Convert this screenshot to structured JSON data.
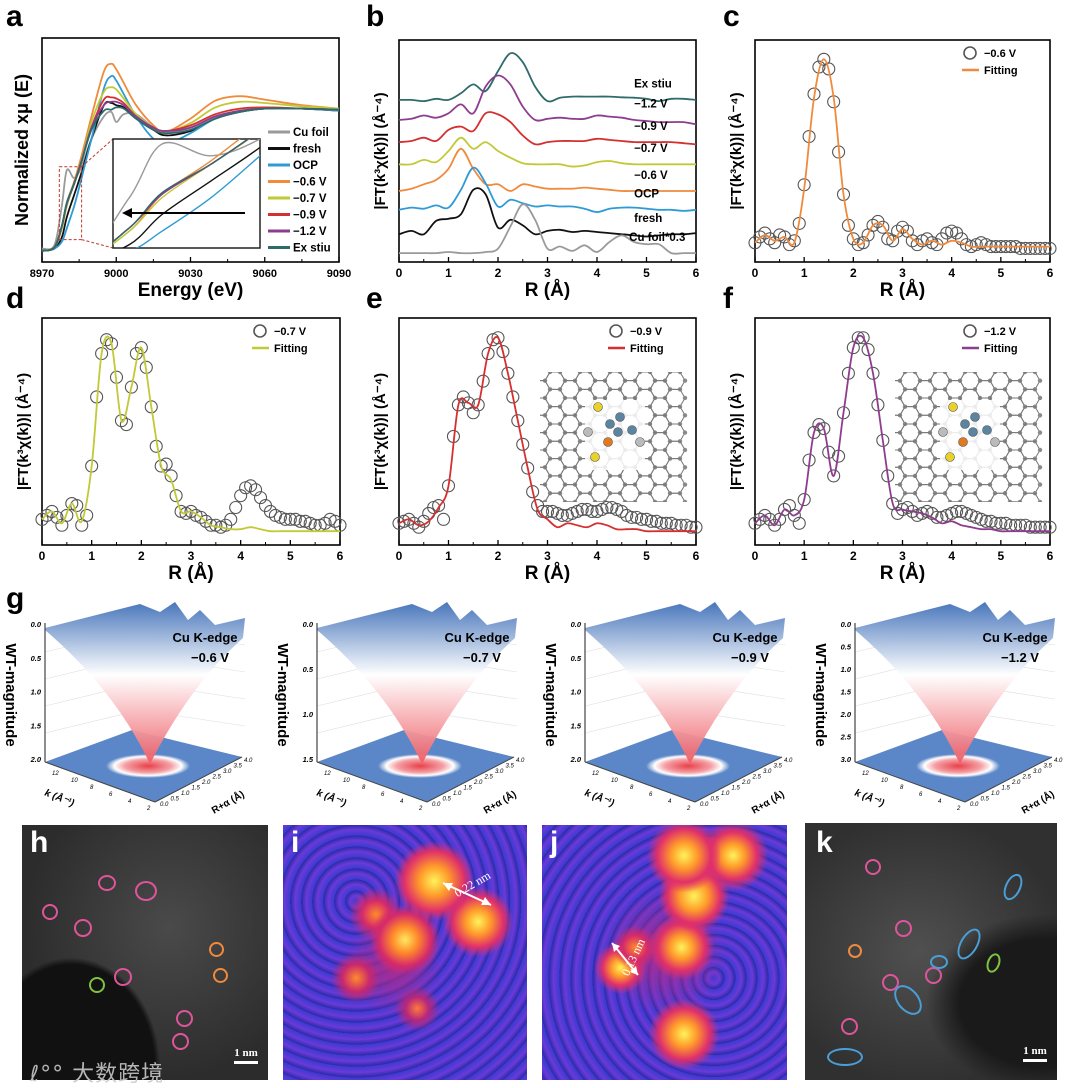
{
  "panel_labels": {
    "a": "a",
    "b": "b",
    "c": "c",
    "d": "d",
    "e": "e",
    "f": "f",
    "g": "g",
    "h": "h",
    "i": "i",
    "j": "j",
    "k": "k"
  },
  "colors": {
    "cu_foil": "#9a9a9a",
    "fresh": "#111111",
    "ocp": "#2f9bd6",
    "m06": "#f08a3c",
    "m07": "#c2c936",
    "m09": "#d62f2f",
    "m12": "#8e3d8e",
    "ex": "#2e6b6b"
  },
  "chart_data": [
    {
      "id": "a",
      "type": "line",
      "xlabel": "Energy (eV)",
      "ylabel": "Normalized xμ (E)",
      "xlim": [
        8970,
        9090
      ],
      "ylim": [
        -0.1,
        1.9
      ],
      "xticks": [
        8970,
        9000,
        9030,
        9060,
        9090
      ],
      "inset": {
        "xlim": [
          8977,
          8986
        ],
        "ylim": [
          0.1,
          0.75
        ]
      },
      "x": [
        8970,
        8975,
        8978,
        8980,
        8983,
        8986,
        8990,
        8995,
        8998,
        9000,
        9003,
        9008,
        9015,
        9020,
        9030,
        9040,
        9050,
        9060,
        9075,
        9090
      ],
      "series": [
        {
          "name": "Cu foil",
          "color_key": "cu_foil",
          "values": [
            0.02,
            0.05,
            0.4,
            0.72,
            0.65,
            0.75,
            1.0,
            1.2,
            1.24,
            1.15,
            1.22,
            1.22,
            1.1,
            1.05,
            1.1,
            1.2,
            1.25,
            1.28,
            1.27,
            1.26
          ]
        },
        {
          "name": "fresh",
          "color_key": "fresh",
          "values": [
            0,
            0.02,
            0.12,
            0.3,
            0.5,
            0.7,
            1.0,
            1.3,
            1.32,
            1.3,
            1.28,
            1.18,
            1.08,
            1.03,
            1.07,
            1.18,
            1.24,
            1.27,
            1.27,
            1.25
          ]
        },
        {
          "name": "OCP",
          "color_key": "ocp",
          "values": [
            0,
            0.02,
            0.08,
            0.2,
            0.4,
            0.65,
            1.0,
            1.45,
            1.56,
            1.52,
            1.4,
            1.2,
            1.0,
            0.95,
            1.05,
            1.18,
            1.24,
            1.27,
            1.27,
            1.25
          ]
        },
        {
          "name": "−0.6 V",
          "color_key": "m06",
          "values": [
            0,
            0.03,
            0.2,
            0.42,
            0.62,
            0.85,
            1.2,
            1.6,
            1.67,
            1.62,
            1.5,
            1.3,
            1.12,
            1.06,
            1.18,
            1.34,
            1.38,
            1.35,
            1.3,
            1.27
          ]
        },
        {
          "name": "−0.7 V",
          "color_key": "m07",
          "values": [
            0,
            0.03,
            0.2,
            0.4,
            0.6,
            0.8,
            1.15,
            1.42,
            1.46,
            1.44,
            1.36,
            1.22,
            1.1,
            1.06,
            1.14,
            1.28,
            1.33,
            1.32,
            1.29,
            1.27
          ]
        },
        {
          "name": "−0.9 V",
          "color_key": "m09",
          "values": [
            0,
            0.03,
            0.22,
            0.42,
            0.6,
            0.8,
            1.1,
            1.35,
            1.37,
            1.36,
            1.32,
            1.2,
            1.1,
            1.07,
            1.12,
            1.22,
            1.27,
            1.28,
            1.27,
            1.26
          ]
        },
        {
          "name": "−1.2 V",
          "color_key": "m12",
          "values": [
            0,
            0.03,
            0.22,
            0.42,
            0.6,
            0.8,
            1.1,
            1.3,
            1.33,
            1.33,
            1.3,
            1.2,
            1.1,
            1.07,
            1.1,
            1.2,
            1.25,
            1.27,
            1.27,
            1.26
          ]
        },
        {
          "name": "Ex stiu",
          "color_key": "ex",
          "values": [
            0,
            0.03,
            0.22,
            0.43,
            0.6,
            0.8,
            1.08,
            1.25,
            1.26,
            1.28,
            1.27,
            1.18,
            1.08,
            1.05,
            1.08,
            1.18,
            1.24,
            1.27,
            1.27,
            1.26
          ]
        }
      ]
    },
    {
      "id": "b",
      "type": "line",
      "xlabel": "R (Å)",
      "ylabel": "|FT(k³χ(k))| (Å⁻⁴)",
      "xlim": [
        0,
        6
      ],
      "ylim": [
        0,
        10
      ],
      "xticks": [
        0,
        1,
        2,
        3,
        4,
        5,
        6
      ],
      "x_start": 0,
      "x_step": 0.25,
      "series": [
        {
          "name": "Ex stiu",
          "color_key": "ex",
          "offset": 7.3,
          "values": [
            0,
            0,
            -0.05,
            0.05,
            0,
            0.3,
            0.7,
            0.4,
            1.3,
            2.1,
            1.7,
            0.6,
            -0.05,
            0.1,
            0.15,
            0.15,
            0.15,
            0.15,
            0.12,
            0.1,
            0.05,
            -0.05,
            0.05,
            0.05,
            0
          ]
        },
        {
          "name": "−1.2 V",
          "color_key": "m12",
          "offset": 6.4,
          "values": [
            0,
            0.05,
            0.2,
            0.1,
            0.3,
            0.7,
            0.3,
            1.5,
            2.0,
            1.6,
            0.6,
            0,
            0.05,
            0.1,
            0.05,
            0.05,
            0.2,
            0.15,
            0.1,
            0,
            -0.05,
            -0.1,
            -0.1,
            -0.1,
            -0.2
          ]
        },
        {
          "name": "−0.9 V",
          "color_key": "m09",
          "offset": 5.4,
          "values": [
            0,
            0.05,
            0.2,
            0.05,
            0.55,
            0.7,
            0.5,
            1.3,
            1.25,
            0.9,
            0.3,
            -0.1,
            0,
            0.05,
            0.05,
            0.05,
            0.15,
            0.1,
            0.05,
            0,
            0,
            0,
            0,
            -0.05,
            -0.1
          ]
        },
        {
          "name": "−0.7 V",
          "color_key": "m07",
          "offset": 4.4,
          "values": [
            0,
            0,
            0.2,
            0.1,
            0.6,
            1.2,
            0.7,
            1.0,
            0.6,
            0.3,
            0.05,
            0,
            0,
            0,
            -0.1,
            -0.05,
            0.1,
            0.15,
            0.05,
            0,
            0,
            0,
            0,
            0,
            0
          ]
        },
        {
          "name": "−0.6 V",
          "color_key": "m06",
          "offset": 3.2,
          "values": [
            0,
            0.1,
            0.3,
            0.5,
            1.0,
            1.9,
            1.0,
            0.3,
            0.3,
            0,
            0.3,
            0.2,
            0.1,
            0.1,
            0.1,
            0.15,
            0.1,
            0.05,
            0,
            0,
            0,
            0,
            0,
            0,
            0
          ]
        },
        {
          "name": "OCP",
          "color_key": "ocp",
          "offset": 2.35,
          "values": [
            0,
            0.1,
            0.05,
            0.2,
            0.1,
            0.9,
            1.9,
            1.2,
            0.15,
            0.45,
            0.3,
            0.15,
            0.2,
            0.15,
            0.15,
            0.05,
            -0.1,
            0.05,
            0.1,
            0.1,
            0.05,
            0,
            0,
            -0.05,
            0
          ]
        },
        {
          "name": "fresh",
          "color_key": "fresh",
          "offset": 1.25,
          "values": [
            0,
            0.15,
            0,
            0.6,
            0.7,
            0.9,
            2.0,
            1.8,
            0.3,
            0.65,
            0.4,
            0,
            0.15,
            0.2,
            0.1,
            0.15,
            0.1,
            0.05,
            0,
            -0.05,
            -0.1,
            -0.05,
            0,
            0,
            0.05
          ]
        },
        {
          "name": "Cu foil*0.3",
          "color_key": "cu_foil",
          "offset": 0.4,
          "values": [
            0,
            0,
            0,
            0,
            0.05,
            0,
            0,
            0.05,
            0.2,
            1.2,
            2.2,
            1.5,
            0.2,
            0.3,
            0.1,
            0.35,
            0.05,
            0.5,
            0.8,
            0.5,
            0.4,
            0.4,
            0,
            0,
            0
          ]
        }
      ]
    },
    {
      "id": "c",
      "type": "scatter+line",
      "xlabel": "R (Å)",
      "ylabel": "|FT(k³χ(k))| (Å⁻⁴)",
      "xlim": [
        0,
        6
      ],
      "ylim": [
        -0.05,
        1.1
      ],
      "xticks": [
        0,
        1,
        2,
        3,
        4,
        5,
        6
      ],
      "legend": {
        "data": "−0.6 V",
        "fit": "Fitting"
      },
      "color_key": "m06",
      "data": {
        "x_start": 0,
        "x_step": 0.1,
        "values": [
          0.05,
          0.08,
          0.1,
          0.07,
          0.05,
          0.09,
          0.08,
          0.04,
          0.06,
          0.15,
          0.35,
          0.6,
          0.82,
          0.96,
          1.0,
          0.95,
          0.78,
          0.52,
          0.3,
          0.14,
          0.07,
          0.04,
          0.05,
          0.09,
          0.14,
          0.16,
          0.13,
          0.07,
          0.06,
          0.11,
          0.13,
          0.11,
          0.06,
          0.04,
          0.06,
          0.07,
          0.05,
          0.04,
          0.07,
          0.1,
          0.11,
          0.1,
          0.07,
          0.04,
          0.03,
          0.04,
          0.05,
          0.04,
          0.03,
          0.03,
          0.03,
          0.03,
          0.03,
          0.03,
          0.02,
          0.02,
          0.02,
          0.02,
          0.02,
          0.02,
          0.02
        ]
      },
      "fit": {
        "x_start": 0,
        "x_step": 0.2,
        "values": [
          0.05,
          0.09,
          0.06,
          0.08,
          0.05,
          0.33,
          0.8,
          1.0,
          0.8,
          0.3,
          0.07,
          0.05,
          0.14,
          0.14,
          0.06,
          0.12,
          0.07,
          0.04,
          0.06,
          0.04,
          0.06,
          0.05,
          0.03,
          0.03,
          0.03,
          0.03,
          0.03,
          0.03,
          0.03,
          0.03,
          0.03
        ]
      }
    },
    {
      "id": "d",
      "type": "scatter+line",
      "xlabel": "R (Å)",
      "ylabel": "|FT(k³χ(k))| (Å⁻⁴)",
      "xlim": [
        0,
        6
      ],
      "ylim": [
        -0.05,
        1.1
      ],
      "xticks": [
        0,
        1,
        2,
        3,
        4,
        5,
        6
      ],
      "legend": {
        "data": "−0.7 V",
        "fit": "Fitting"
      },
      "color_key": "m07",
      "data": {
        "x_start": 0,
        "x_step": 0.1,
        "values": [
          0.08,
          0.1,
          0.12,
          0.09,
          0.05,
          0.1,
          0.16,
          0.15,
          0.05,
          0.1,
          0.35,
          0.7,
          0.92,
          0.99,
          0.97,
          0.8,
          0.58,
          0.56,
          0.75,
          0.92,
          0.95,
          0.85,
          0.65,
          0.45,
          0.35,
          0.36,
          0.3,
          0.2,
          0.12,
          0.11,
          0.12,
          0.1,
          0.09,
          0.07,
          0.05,
          0.05,
          0.04,
          0.05,
          0.08,
          0.14,
          0.2,
          0.24,
          0.25,
          0.23,
          0.19,
          0.15,
          0.12,
          0.1,
          0.09,
          0.08,
          0.08,
          0.08,
          0.07,
          0.07,
          0.06,
          0.05,
          0.05,
          0.06,
          0.08,
          0.07,
          0.05
        ]
      },
      "fit": {
        "x_start": 0,
        "x_step": 0.2,
        "values": [
          0.08,
          0.12,
          0.06,
          0.16,
          0.07,
          0.35,
          0.92,
          0.97,
          0.58,
          0.75,
          0.95,
          0.65,
          0.35,
          0.28,
          0.12,
          0.12,
          0.09,
          0.05,
          0.04,
          0.03,
          0.03,
          0.04,
          0.03,
          0.02,
          0.02,
          0.02,
          0.02,
          0.02,
          0.02,
          0.02,
          0.02
        ]
      }
    },
    {
      "id": "e",
      "type": "scatter+line",
      "xlabel": "R (Å)",
      "ylabel": "|FT(k³χ(k))| (Å⁻⁴)",
      "xlim": [
        0,
        6
      ],
      "ylim": [
        -0.05,
        1.1
      ],
      "xticks": [
        0,
        1,
        2,
        3,
        4,
        5,
        6
      ],
      "legend": {
        "data": "−0.9 V",
        "fit": "Fitting"
      },
      "color_key": "m09",
      "data": {
        "x_start": 0,
        "x_step": 0.1,
        "values": [
          0.06,
          0.07,
          0.08,
          0.06,
          0.04,
          0.07,
          0.11,
          0.14,
          0.15,
          0.08,
          0.25,
          0.5,
          0.66,
          0.7,
          0.67,
          0.62,
          0.66,
          0.78,
          0.92,
          0.99,
          1.0,
          0.93,
          0.82,
          0.7,
          0.58,
          0.46,
          0.34,
          0.22,
          0.15,
          0.12,
          0.12,
          0.12,
          0.11,
          0.1,
          0.1,
          0.11,
          0.12,
          0.13,
          0.13,
          0.12,
          0.12,
          0.13,
          0.14,
          0.14,
          0.13,
          0.12,
          0.1,
          0.09,
          0.09,
          0.08,
          0.08,
          0.07,
          0.07,
          0.06,
          0.06,
          0.06,
          0.05,
          0.05,
          0.05,
          0.04,
          0.04
        ]
      },
      "fit": {
        "x_start": 0,
        "x_step": 0.2,
        "values": [
          0.06,
          0.08,
          0.05,
          0.07,
          0.14,
          0.25,
          0.66,
          0.67,
          0.66,
          0.92,
          1.0,
          0.82,
          0.58,
          0.34,
          0.13,
          0.08,
          0.04,
          0.06,
          0.05,
          0.04,
          0.06,
          0.05,
          0.03,
          0.03,
          0.03,
          0.02,
          0.02,
          0.02,
          0.02,
          0.02,
          0.02
        ]
      }
    },
    {
      "id": "f",
      "type": "scatter+line",
      "xlabel": "R (Å)",
      "ylabel": "|FT(k³χ(k))| (Å⁻⁴)",
      "xlim": [
        0,
        6
      ],
      "ylim": [
        -0.05,
        1.1
      ],
      "xticks": [
        0,
        1,
        2,
        3,
        4,
        5,
        6
      ],
      "legend": {
        "data": "−1.2 V",
        "fit": "Fitting"
      },
      "color_key": "m12",
      "data": {
        "x_start": 0,
        "x_step": 0.1,
        "values": [
          0.06,
          0.08,
          0.1,
          0.08,
          0.05,
          0.08,
          0.13,
          0.15,
          0.1,
          0.06,
          0.18,
          0.38,
          0.52,
          0.56,
          0.54,
          0.42,
          0.3,
          0.4,
          0.62,
          0.82,
          0.95,
          1.0,
          1.0,
          0.94,
          0.82,
          0.66,
          0.48,
          0.3,
          0.16,
          0.11,
          0.13,
          0.14,
          0.12,
          0.1,
          0.11,
          0.12,
          0.11,
          0.09,
          0.09,
          0.1,
          0.11,
          0.12,
          0.12,
          0.11,
          0.1,
          0.09,
          0.08,
          0.07,
          0.07,
          0.06,
          0.06,
          0.06,
          0.05,
          0.05,
          0.05,
          0.05,
          0.04,
          0.04,
          0.04,
          0.04,
          0.04
        ]
      },
      "fit": {
        "x_start": 0,
        "x_step": 0.2,
        "values": [
          0.06,
          0.1,
          0.05,
          0.13,
          0.1,
          0.18,
          0.52,
          0.54,
          0.3,
          0.62,
          0.95,
          1.0,
          0.82,
          0.48,
          0.16,
          0.13,
          0.12,
          0.11,
          0.09,
          0.06,
          0.07,
          0.05,
          0.04,
          0.03,
          0.03,
          0.02,
          0.02,
          0.02,
          0.02,
          0.02,
          0.02
        ]
      }
    },
    {
      "id": "g",
      "type": "surface",
      "zlabel": "WT-magnitude",
      "klabel": "k (Å⁻¹)",
      "rlabel": "R+α (Å)",
      "k_ticks": [
        "12",
        "10",
        "8",
        "6",
        "4",
        "2"
      ],
      "r_ticks": [
        "0.0",
        "0.5",
        "1.0",
        "1.5",
        "2.0",
        "2.5",
        "3.0",
        "3.5",
        "4.0"
      ],
      "plots": [
        {
          "edge": "Cu K-edge",
          "potential": "−0.6 V",
          "z_ticks": [
            "0.0",
            "0.5",
            "1.0",
            "1.5",
            "2.0"
          ]
        },
        {
          "edge": "Cu K-edge",
          "potential": "−0.7 V",
          "z_ticks": [
            "0.0",
            "0.5",
            "1.0",
            "1.5"
          ]
        },
        {
          "edge": "Cu K-edge",
          "potential": "−0.9 V",
          "z_ticks": [
            "0.0",
            "0.5",
            "1.0",
            "1.5",
            "2.0"
          ]
        },
        {
          "edge": "Cu K-edge",
          "potential": "−1.2 V",
          "z_ticks": [
            "0.0",
            "0.5",
            "1.0",
            "1.5",
            "2.0",
            "2.5",
            "3.0"
          ]
        }
      ]
    }
  ],
  "images": {
    "h": {
      "scale_bar": "1 nm"
    },
    "i": {
      "distance": "0.22 nm"
    },
    "j": {
      "distance": "0.13 nm"
    },
    "k": {
      "scale_bar": "1 nm"
    }
  },
  "watermark": "大数跨境"
}
